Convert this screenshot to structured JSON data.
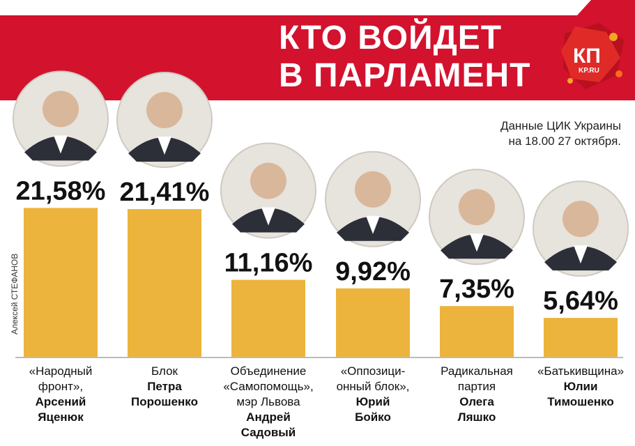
{
  "header": {
    "title_line1": "КТО ВОЙДЕТ",
    "title_line2": "В ПАРЛАМЕНТ",
    "logo_text": "КП",
    "logo_sub": "KP.RU"
  },
  "source": {
    "line1": "Данные ЦИК Украины",
    "line2": "на 18.00 27 октября."
  },
  "credit": "Алексей СТЕФАНОВ",
  "colors": {
    "banner": "#d3122e",
    "bar": "#ecb43c",
    "value_text": "#111111"
  },
  "chart_data": {
    "type": "bar",
    "title": "КТО ВОЙДЕТ В ПАРЛАМЕНТ",
    "unit": "%",
    "ylim": [
      0,
      25
    ],
    "grid": false,
    "categories": [
      "«Народный фронт», Арсений Яценюк",
      "Блок Петра Порошенко",
      "Объединение «Самопомощь», мэр Львова Андрей Садовый",
      "«Оппозиционный блок», Юрий Бойко",
      "Радикальная партия Олега Ляшко",
      "«Батькивщина» Юлии Тимошенко"
    ],
    "values": [
      21.58,
      21.41,
      11.16,
      9.92,
      7.35,
      5.64
    ],
    "value_labels": [
      "21,58%",
      "21,41%",
      "11,16%",
      "9,92%",
      "7,35%",
      "5,64%"
    ]
  },
  "labels": [
    {
      "regular": [
        "«Народный",
        "фронт»,"
      ],
      "bold": [
        "Арсений",
        "Яценюк"
      ]
    },
    {
      "regular": [
        "Блок"
      ],
      "bold": [
        "Петра",
        "Порошенко"
      ]
    },
    {
      "regular": [
        "Объединение",
        "«Самопомощь»,",
        "мэр Львова"
      ],
      "bold": [
        "Андрей",
        "Садовый"
      ]
    },
    {
      "regular": [
        "«Оппозици-",
        "онный блок»,"
      ],
      "bold": [
        "Юрий",
        "Бойко"
      ]
    },
    {
      "regular": [
        "Радикальная",
        "партия"
      ],
      "bold": [
        "Олега",
        "Ляшко"
      ]
    },
    {
      "regular": [
        "«Батькивщина»"
      ],
      "bold": [
        "Юлии",
        "Тимошенко"
      ]
    }
  ],
  "portraits": [
    {
      "icon": "portrait-photo-icon"
    },
    {
      "icon": "portrait-photo-icon"
    },
    {
      "icon": "portrait-photo-icon"
    },
    {
      "icon": "portrait-photo-icon"
    },
    {
      "icon": "portrait-photo-icon"
    },
    {
      "icon": "portrait-photo-icon"
    }
  ]
}
